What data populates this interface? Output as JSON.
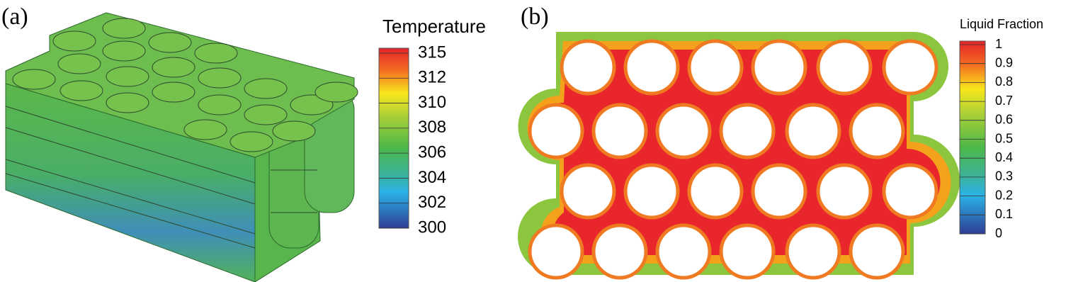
{
  "panels": [
    {
      "label": "(a)",
      "colorbar": {
        "title": "Temperature",
        "ticks": [
          "315",
          "312",
          "310",
          "308",
          "306",
          "304",
          "302",
          "300"
        ]
      }
    },
    {
      "label": "(b)",
      "colorbar": {
        "title": "Liquid Fraction",
        "ticks": [
          "1",
          "0.9",
          "0.8",
          "0.7",
          "0.6",
          "0.5",
          "0.4",
          "0.3",
          "0.2",
          "0.1",
          "0"
        ]
      }
    }
  ]
}
